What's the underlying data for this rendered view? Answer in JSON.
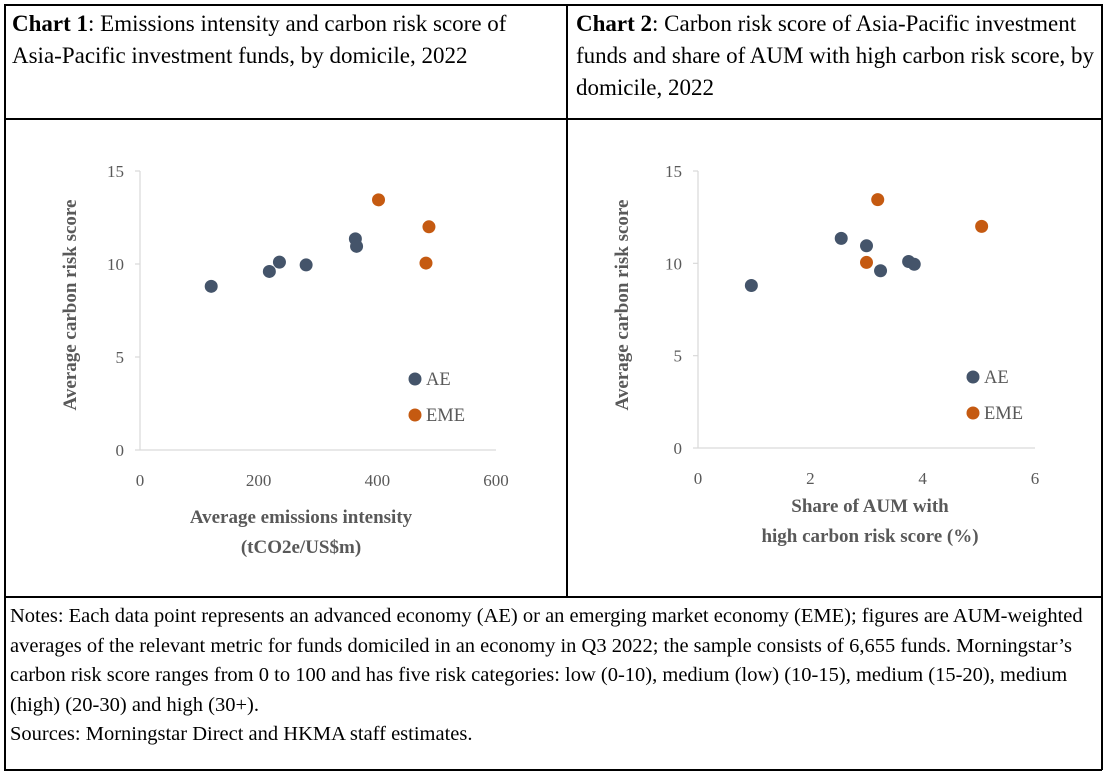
{
  "chart1": {
    "title_bold": "Chart 1",
    "title_rest": ": Emissions intensity and carbon risk score of Asia-Pacific investment funds, by domicile, 2022"
  },
  "chart2": {
    "title_bold": "Chart 2",
    "title_rest": ": Carbon risk score of Asia-Pacific investment funds and share of AUM with high carbon risk score, by domicile, 2022"
  },
  "notes": "Notes: Each data point represents an advanced economy (AE) or an emerging market economy (EME); figures are AUM-weighted averages of the relevant metric for funds domiciled in an economy in Q3 2022; the sample consists of 6,655 funds. Morningstar’s carbon risk score ranges from 0 to 100 and has five risk categories: low (0-10), medium (low) (10-15), medium (15-20), medium (high) (20-30) and high (30+).",
  "sources": "Sources: Morningstar Direct and HKMA staff estimates.",
  "colors": {
    "AE": "#44546a",
    "EME": "#c55a11",
    "axis": "#d9d9d9",
    "text": "#595959"
  },
  "chart_data": [
    {
      "type": "scatter",
      "title": "Chart 1: Emissions intensity and carbon risk score of Asia-Pacific investment funds, by domicile, 2022",
      "xlabel_lines": [
        "Average emissions intensity",
        "(tCO2e/US$m)"
      ],
      "ylabel": "Average carbon risk score",
      "xlim": [
        0,
        600
      ],
      "ylim": [
        0,
        15
      ],
      "xticks": [
        0,
        200,
        400,
        600
      ],
      "yticks": [
        0,
        5,
        10,
        15
      ],
      "grid": false,
      "legend": "bottom-right",
      "series": [
        {
          "name": "AE",
          "points": [
            [
              120,
              8.8
            ],
            [
              218,
              9.6
            ],
            [
              235,
              10.1
            ],
            [
              280,
              9.95
            ],
            [
              363,
              11.35
            ],
            [
              365,
              10.95
            ]
          ]
        },
        {
          "name": "EME",
          "points": [
            [
              402,
              13.45
            ],
            [
              482,
              10.05
            ],
            [
              487,
              12.0
            ]
          ]
        }
      ]
    },
    {
      "type": "scatter",
      "title": "Chart 2: Carbon risk score of Asia-Pacific investment funds and share of AUM with high carbon risk score, by domicile, 2022",
      "xlabel_lines": [
        "Share of AUM with",
        "high carbon risk score (%)"
      ],
      "ylabel": "Average carbon risk score",
      "xlim": [
        0,
        6
      ],
      "ylim": [
        0,
        15
      ],
      "xticks": [
        0,
        2,
        4,
        6
      ],
      "yticks": [
        0,
        5,
        10,
        15
      ],
      "grid": false,
      "legend": "bottom-right",
      "series": [
        {
          "name": "AE",
          "points": [
            [
              0.95,
              8.8
            ],
            [
              2.55,
              11.35
            ],
            [
              3.0,
              10.95
            ],
            [
              3.25,
              9.6
            ],
            [
              3.75,
              10.1
            ],
            [
              3.85,
              9.95
            ]
          ]
        },
        {
          "name": "EME",
          "points": [
            [
              3.0,
              10.05
            ],
            [
              3.2,
              13.45
            ],
            [
              5.05,
              12.0
            ]
          ]
        }
      ]
    }
  ]
}
